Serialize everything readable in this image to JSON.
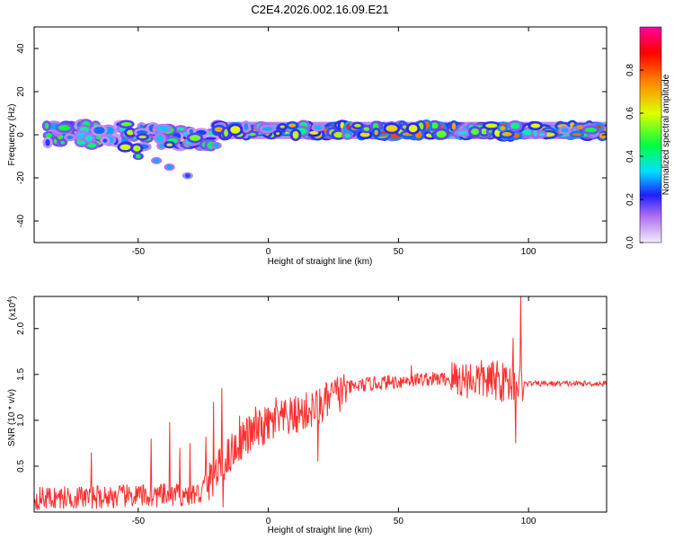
{
  "title": "C2E4.2026.002.16.09.E21",
  "chart_data": [
    {
      "type": "heatmap",
      "name": "spectrogram",
      "xlabel": "Height of straight line (km)",
      "ylabel": "Frequency (Hz)",
      "xlim": [
        -90,
        130
      ],
      "ylim": [
        -50,
        50
      ],
      "xticks": [
        -50,
        0,
        50,
        100
      ],
      "yticks": [
        -40,
        -20,
        0,
        20,
        40
      ],
      "colorbar": {
        "label": "Normalized spectral amplitude",
        "range": [
          0,
          1
        ],
        "ticks": [
          0.0,
          0.2,
          0.4,
          0.6,
          0.8
        ],
        "tick_labels": [
          "0.0",
          "0.2",
          "0.4",
          "0.6",
          "0.8"
        ],
        "stops": [
          {
            "v": 0.0,
            "c": "#f4ecfb"
          },
          {
            "v": 0.12,
            "c": "#b070f0"
          },
          {
            "v": 0.22,
            "c": "#2020ff"
          },
          {
            "v": 0.33,
            "c": "#00e0ff"
          },
          {
            "v": 0.45,
            "c": "#00ff40"
          },
          {
            "v": 0.6,
            "c": "#e0ff00"
          },
          {
            "v": 0.75,
            "c": "#ff8000"
          },
          {
            "v": 0.88,
            "c": "#ff0000"
          },
          {
            "v": 1.0,
            "c": "#ff00a0"
          }
        ]
      },
      "band": {
        "center_hz": 2,
        "halfwidth_hz": 2.5,
        "start_km": -20,
        "end_km": 130
      },
      "segments": [
        {
          "x0": -88,
          "x1": -55,
          "amp": 0.55,
          "center_hz": 0,
          "spread_hz": 5
        },
        {
          "x0": -55,
          "x1": -45,
          "amp": 0.6,
          "center_hz": -1,
          "spread_hz": 6
        },
        {
          "x0": -45,
          "x1": -30,
          "amp": 0.65,
          "center_hz": -1,
          "spread_hz": 5
        },
        {
          "x0": -30,
          "x1": -20,
          "amp": 0.6,
          "center_hz": -2,
          "spread_hz": 4
        },
        {
          "x0": -20,
          "x1": 30,
          "amp": 0.8,
          "center_hz": 2,
          "spread_hz": 2.5
        },
        {
          "x0": 30,
          "x1": 130,
          "amp": 0.85,
          "center_hz": 2,
          "spread_hz": 2.5
        }
      ],
      "features": [
        {
          "x": -50,
          "y": -10,
          "amp": 0.45
        },
        {
          "x": -43,
          "y": -12,
          "amp": 0.3
        },
        {
          "x": -38,
          "y": -15,
          "amp": 0.3
        },
        {
          "x": -31,
          "y": -19,
          "amp": 0.25
        },
        {
          "x": -20,
          "y": -5,
          "amp": 0.3
        },
        {
          "x": 90,
          "y": 3,
          "amp": 0.7
        }
      ]
    },
    {
      "type": "line",
      "name": "snr",
      "xlabel": "Height of straight line (km)",
      "ylabel": "SNR (10 * v/v)",
      "y_multiplier": "(x10",
      "y_multiplier_exp": "4",
      "y_multiplier_close": ")",
      "xlim": [
        -90,
        130
      ],
      "ylim": [
        0,
        2.35
      ],
      "xticks": [
        -50,
        0,
        50,
        100
      ],
      "yticks": [
        0.5,
        1.0,
        1.5,
        2.0
      ],
      "ytick_labels": [
        "0.5",
        "1.0",
        "1.5",
        "2.0"
      ],
      "color": "#ff3030",
      "trend": [
        {
          "x": -90,
          "y": 0.15
        },
        {
          "x": -40,
          "y": 0.18
        },
        {
          "x": -26,
          "y": 0.2
        },
        {
          "x": -22,
          "y": 0.35
        },
        {
          "x": -17,
          "y": 0.55
        },
        {
          "x": -10,
          "y": 0.8
        },
        {
          "x": 0,
          "y": 0.95
        },
        {
          "x": 10,
          "y": 1.05
        },
        {
          "x": 20,
          "y": 1.15
        },
        {
          "x": 25,
          "y": 1.25
        },
        {
          "x": 30,
          "y": 1.35
        },
        {
          "x": 40,
          "y": 1.4
        },
        {
          "x": 60,
          "y": 1.45
        },
        {
          "x": 80,
          "y": 1.45
        },
        {
          "x": 95,
          "y": 1.4
        },
        {
          "x": 130,
          "y": 1.4
        }
      ],
      "spikes": [
        {
          "x": -68,
          "y": 0.65
        },
        {
          "x": -45,
          "y": 0.8
        },
        {
          "x": -38,
          "y": 0.98
        },
        {
          "x": -34,
          "y": 0.7
        },
        {
          "x": -30,
          "y": 0.75
        },
        {
          "x": -24,
          "y": 0.82
        },
        {
          "x": -21,
          "y": 1.2
        },
        {
          "x": -18,
          "y": 1.35
        },
        {
          "x": -17.5,
          "y": 0.05
        },
        {
          "x": -11,
          "y": 1.05
        },
        {
          "x": -5,
          "y": 1.15
        },
        {
          "x": 3,
          "y": 1.25
        },
        {
          "x": 8,
          "y": 0.9
        },
        {
          "x": 19,
          "y": 0.55
        },
        {
          "x": 25,
          "y": 1.3
        },
        {
          "x": 55,
          "y": 1.6
        },
        {
          "x": 88,
          "y": 1.65
        },
        {
          "x": 94,
          "y": 1.9
        },
        {
          "x": 95,
          "y": 0.75
        },
        {
          "x": 97,
          "y": 2.35
        },
        {
          "x": 98,
          "y": 1.3
        }
      ]
    }
  ]
}
